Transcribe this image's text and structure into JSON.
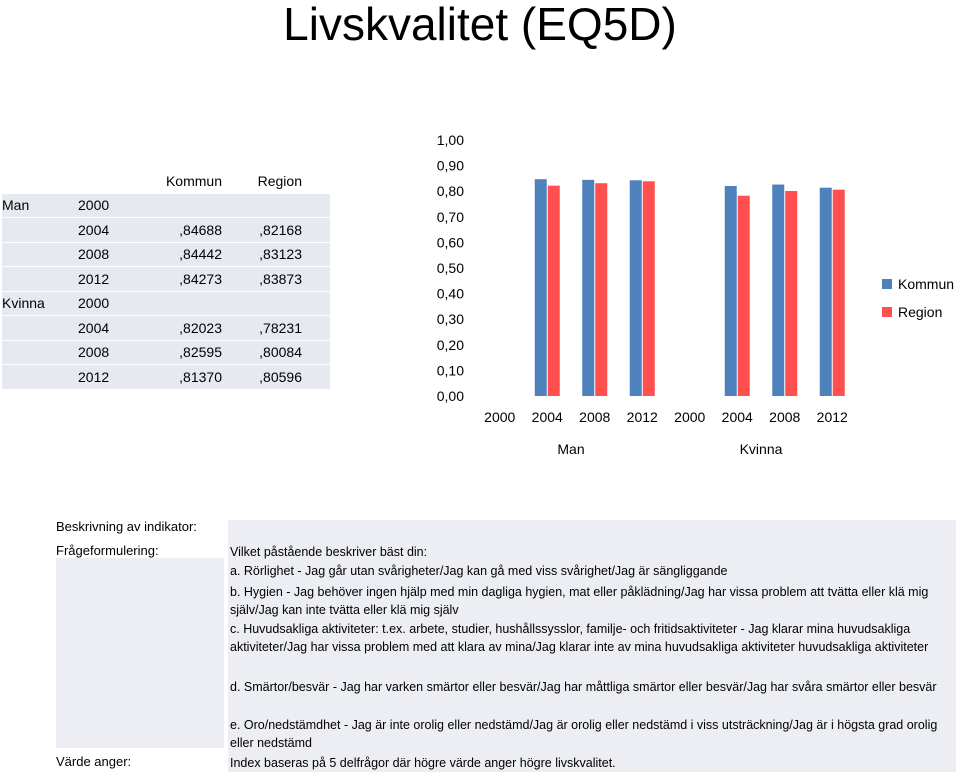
{
  "title": "Livskvalitet (EQ5D)",
  "table": {
    "headers": [
      "Kommun",
      "Region"
    ],
    "rows": [
      {
        "group": "Man",
        "year": "2000",
        "kommun": "",
        "region": ""
      },
      {
        "group": "",
        "year": "2004",
        "kommun": ",84688",
        "region": ",82168"
      },
      {
        "group": "",
        "year": "2008",
        "kommun": ",84442",
        "region": ",83123"
      },
      {
        "group": "",
        "year": "2012",
        "kommun": ",84273",
        "region": ",83873"
      },
      {
        "group": "Kvinna",
        "year": "2000",
        "kommun": "",
        "region": ""
      },
      {
        "group": "",
        "year": "2004",
        "kommun": ",82023",
        "region": ",78231"
      },
      {
        "group": "",
        "year": "2008",
        "kommun": ",82595",
        "region": ",80084"
      },
      {
        "group": "",
        "year": "2012",
        "kommun": ",81370",
        "region": ",80596"
      }
    ]
  },
  "chart_data": {
    "type": "bar",
    "categories": [
      "2000",
      "2004",
      "2008",
      "2012",
      "2000",
      "2004",
      "2008",
      "2012"
    ],
    "groups": [
      {
        "label": "Man",
        "categories": [
          "2000",
          "2004",
          "2008",
          "2012"
        ]
      },
      {
        "label": "Kvinna",
        "categories": [
          "2000",
          "2004",
          "2008",
          "2012"
        ]
      }
    ],
    "series": [
      {
        "name": "Kommun",
        "color": "#4f81bd",
        "values": [
          null,
          0.84688,
          0.84442,
          0.84273,
          null,
          0.82023,
          0.82595,
          0.8137
        ]
      },
      {
        "name": "Region",
        "color": "#ff4f4f",
        "values": [
          null,
          0.82168,
          0.83123,
          0.83873,
          null,
          0.78231,
          0.80084,
          0.80596
        ]
      }
    ],
    "ylim": [
      0,
      1
    ],
    "yticks": [
      "0,00",
      "0,10",
      "0,20",
      "0,30",
      "0,40",
      "0,50",
      "0,60",
      "0,70",
      "0,80",
      "0,90",
      "1,00"
    ],
    "legend_position": "right",
    "grid": false
  },
  "description": {
    "label_beskrivning": "Beskrivning av indikator:",
    "label_fragor": "Frågeformulering:",
    "label_varde": "Värde anger:",
    "intro": "Vilket påstående beskriver bäst din:",
    "item_a": "a. Rörlighet - Jag går utan svårigheter/Jag kan gå med viss svårighet/Jag är sängliggande",
    "item_b": "b. Hygien - Jag behöver ingen hjälp med min dagliga hygien, mat eller påklädning/Jag har vissa problem att tvätta eller klä mig själv/Jag kan inte tvätta eller klä mig själv",
    "item_c": "c. Huvudsakliga aktiviteter: t.ex. arbete, studier, hushållssysslor, familje- och fritidsaktiviteter - Jag klarar mina huvudsakliga aktiviteter/Jag har vissa problem med att klara av mina/Jag klarar inte av mina huvudsakliga aktiviteter huvudsakliga aktiviteter",
    "item_d": "d. Smärtor/besvär - Jag har varken smärtor eller besvär/Jag har måttliga smärtor eller besvär/Jag har svåra smärtor eller besvär",
    "item_e": "e. Oro/nedstämdhet - Jag är inte orolig eller nedstämd/Jag är orolig eller nedstämd i viss utsträckning/Jag är i högsta grad orolig eller nedstämd",
    "varde": "Index baseras på 5 delfrågor där högre värde anger högre livskvalitet."
  }
}
